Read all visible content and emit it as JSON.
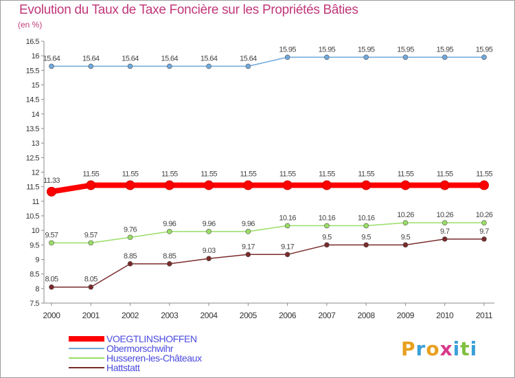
{
  "title": "Evolution du Taux de Taxe Foncière sur les Propriétés Bâties",
  "subtitle": "(en %)",
  "chart_data": {
    "type": "line",
    "title": "Evolution du Taux de Taxe Foncière sur les Propriétés Bâties",
    "ylabel": "(en %)",
    "xlabel": "",
    "categories": [
      "2000",
      "2001",
      "2002",
      "2003",
      "2004",
      "2005",
      "2006",
      "2007",
      "2008",
      "2009",
      "2010",
      "2011"
    ],
    "ylim": [
      7.5,
      16.5
    ],
    "yticks": [
      7.5,
      8,
      8.5,
      9,
      9.5,
      10,
      10.5,
      11,
      11.5,
      12,
      12.5,
      13,
      13.5,
      14,
      14.5,
      15,
      15.5,
      16,
      16.5
    ],
    "series": [
      {
        "name": "VOEGTLINSHOFFEN",
        "color": "#ff0000",
        "values": [
          11.33,
          11.55,
          11.55,
          11.55,
          11.55,
          11.55,
          11.55,
          11.55,
          11.55,
          11.55,
          11.55,
          11.55
        ],
        "labels": [
          "11.33",
          "11.55",
          "11.55",
          "11.55",
          "11.55",
          "11.55",
          "11.55",
          "11.55",
          "11.55",
          "11.55",
          "11.55",
          "11.55"
        ]
      },
      {
        "name": "Obermorschwihr",
        "color": "#6fa8dc",
        "values": [
          15.64,
          15.64,
          15.64,
          15.64,
          15.64,
          15.64,
          15.95,
          15.95,
          15.95,
          15.95,
          15.95,
          15.95
        ],
        "labels": [
          "15.64",
          "15.64",
          "15.64",
          "15.64",
          "15.64",
          "15.64",
          "15.95",
          "15.95",
          "15.95",
          "15.95",
          "15.95",
          "15.95"
        ]
      },
      {
        "name": "Husseren-les-Châteaux",
        "color": "#99dd66",
        "values": [
          9.57,
          9.57,
          9.76,
          9.96,
          9.96,
          9.96,
          10.16,
          10.16,
          10.16,
          10.26,
          10.26,
          10.26
        ],
        "labels": [
          "9.57",
          "9.57",
          "9.76",
          "9.96",
          "9.96",
          "9.96",
          "10.16",
          "10.16",
          "10.16",
          "10.26",
          "10.26",
          "10.26"
        ]
      },
      {
        "name": "Hattstatt",
        "color": "#7a2a2a",
        "values": [
          8.05,
          8.05,
          8.85,
          8.85,
          9.03,
          9.17,
          9.17,
          9.5,
          9.5,
          9.5,
          9.7,
          9.7
        ],
        "labels": [
          "8.05",
          "8.05",
          "8.85",
          "8.85",
          "9.03",
          "9.17",
          "9.17",
          "9.5",
          "9.5",
          "9.5",
          "9.7",
          "9.7"
        ]
      }
    ],
    "legend": [
      "VOEGTLINSHOFFEN",
      "Obermorschwihr",
      "Husseren-les-Châteaux",
      "Hattstatt"
    ],
    "legend_position": "bottom-left"
  },
  "logo": {
    "p": "P",
    "r": "r",
    "o": "o",
    "x": "x",
    "i1": "i",
    "t": "t",
    "i2": "i"
  },
  "colors": {
    "title": "#c0387a",
    "axis": "#888888",
    "legend_text": "#4a4ae0"
  }
}
